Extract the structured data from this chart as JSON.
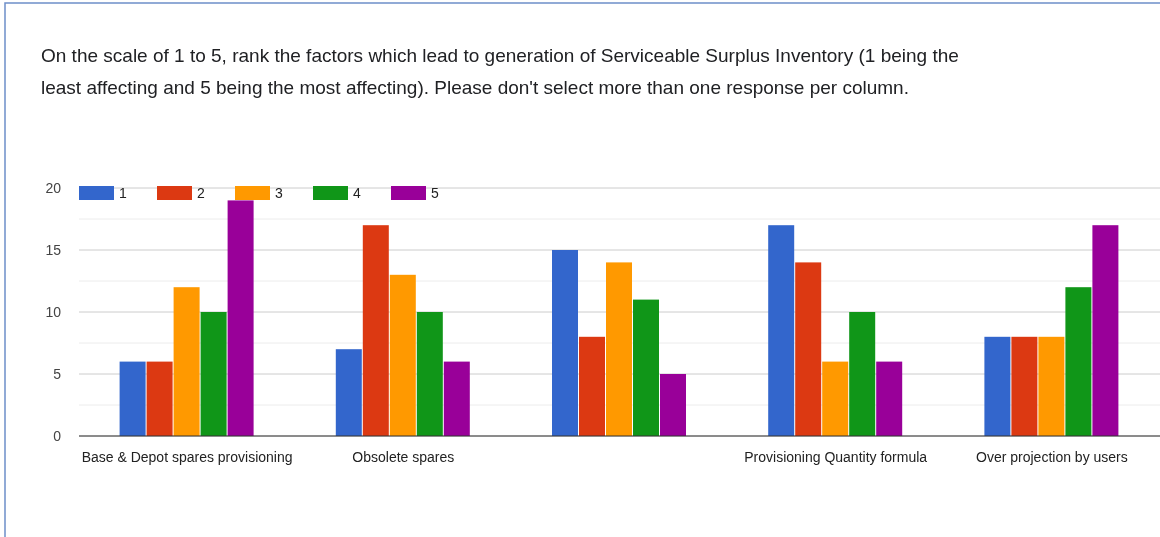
{
  "chart_data": {
    "type": "bar",
    "title": "On the scale of 1 to 5, rank the factors which lead to generation of Serviceable Surplus Inventory (1 being the least affecting and 5 being the most affecting). Please don't select more than one response per column.",
    "categories": [
      "Base & Depot spares provisioning",
      "Obsolete spares",
      null,
      "Provisioning Quantity formula",
      "Over projection by users"
    ],
    "series": [
      {
        "name": "1",
        "color": "#3366cc",
        "values": [
          6,
          7,
          15,
          17,
          8
        ]
      },
      {
        "name": "2",
        "color": "#dc3912",
        "values": [
          6,
          17,
          8,
          14,
          8
        ]
      },
      {
        "name": "3",
        "color": "#ff9900",
        "values": [
          12,
          13,
          14,
          6,
          8
        ]
      },
      {
        "name": "4",
        "color": "#109618",
        "values": [
          10,
          10,
          11,
          10,
          12
        ]
      },
      {
        "name": "5",
        "color": "#990099",
        "values": [
          19,
          6,
          5,
          6,
          17
        ]
      }
    ],
    "ylim": [
      0,
      20
    ],
    "yticks": [
      0,
      {
        "value": 2.5,
        "label": null
      },
      5,
      {
        "value": 7.5,
        "label": null
      },
      10,
      {
        "value": 12.5,
        "label": null
      },
      15,
      {
        "value": 17.5,
        "label": null
      },
      20
    ],
    "grid": true,
    "legend": "top left"
  }
}
